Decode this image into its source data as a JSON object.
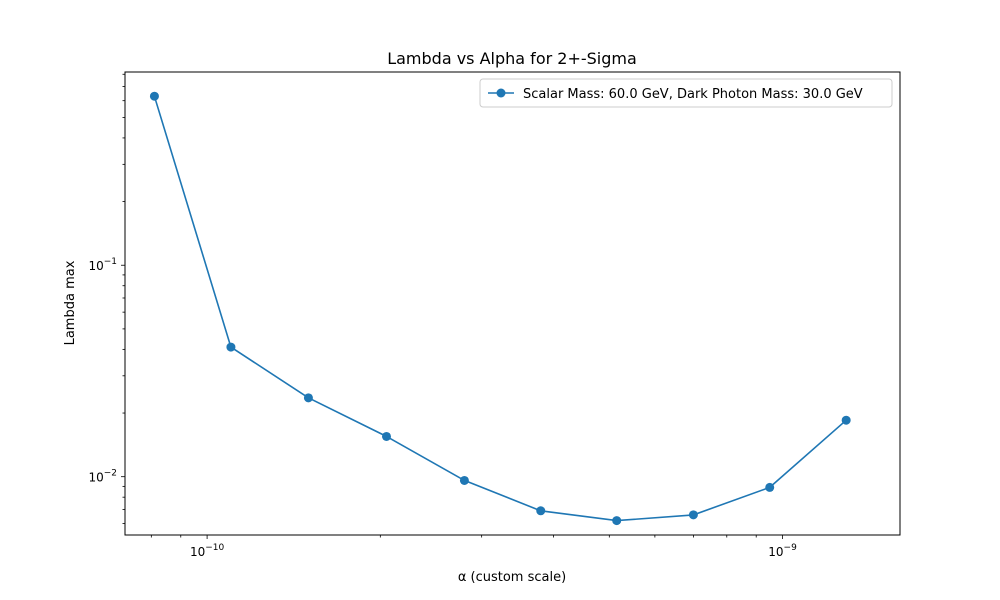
{
  "chart_data": {
    "type": "line",
    "title": "Lambda vs Alpha for 2+-Sigma",
    "xlabel": "α (custom scale)",
    "ylabel": "Lambda max",
    "xscale": "log",
    "yscale": "log",
    "xlim": [
      7.2e-11,
      1.6e-09
    ],
    "ylim": [
      0.0053,
      0.82
    ],
    "x_major_ticks": [
      {
        "value": 1e-10,
        "label": "10^-10"
      },
      {
        "value": 1e-09,
        "label": "10^-9"
      }
    ],
    "x_minor_ticks": [
      8e-11,
      9e-11,
      2e-10,
      3e-10,
      4e-10,
      5e-10,
      6e-10,
      7e-10,
      8e-10,
      9e-10
    ],
    "y_major_ticks": [
      {
        "value": 0.01,
        "label": "10^-2"
      },
      {
        "value": 0.1,
        "label": "10^-1"
      }
    ],
    "y_minor_ticks": [
      0.006,
      0.007,
      0.008,
      0.009,
      0.02,
      0.03,
      0.04,
      0.05,
      0.06,
      0.07,
      0.08,
      0.09,
      0.2,
      0.3,
      0.4,
      0.5,
      0.6,
      0.7,
      0.8
    ],
    "grid": false,
    "legend_position": "top-right",
    "series": [
      {
        "name": "Scalar Mass: 60.0 GeV, Dark Photon Mass: 30.0 GeV",
        "color": "#1f77b4",
        "marker": "circle",
        "x": [
          8.1e-11,
          1.1e-10,
          1.5e-10,
          2.05e-10,
          2.8e-10,
          3.8e-10,
          5.15e-10,
          7e-10,
          9.5e-10,
          1.29e-09
        ],
        "y": [
          0.63,
          0.041,
          0.0236,
          0.0155,
          0.0096,
          0.0069,
          0.0062,
          0.0066,
          0.0089,
          0.0185
        ]
      }
    ]
  }
}
